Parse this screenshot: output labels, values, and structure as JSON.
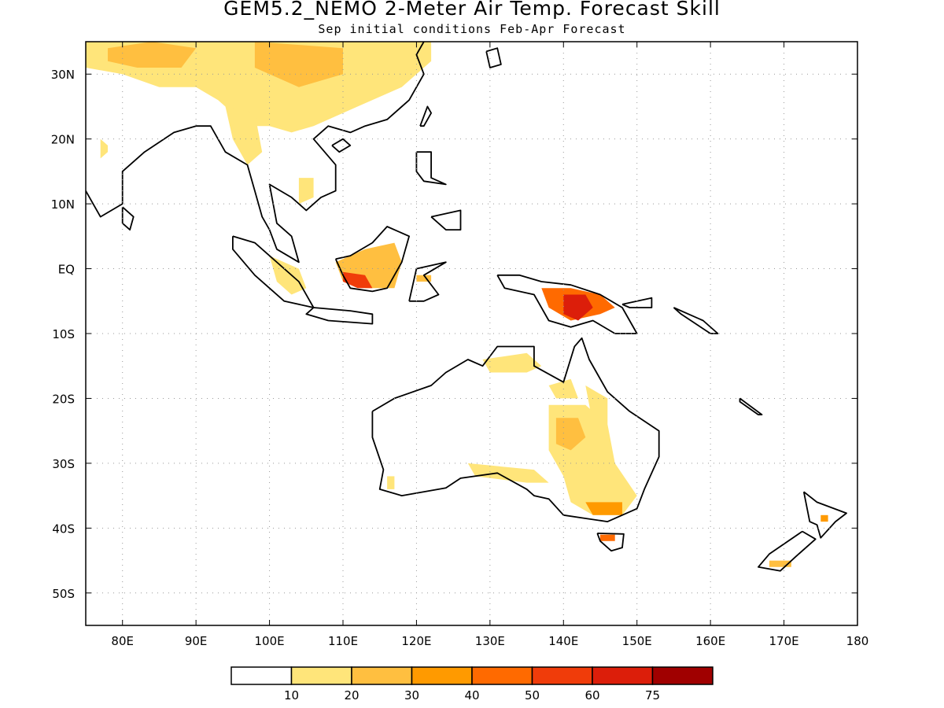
{
  "header": {
    "title": "GEM5.2_NEMO 2-Meter Air Temp. Forecast Skill",
    "subtitle": "Sep initial conditions  Feb-Apr Forecast"
  },
  "map": {
    "lon_range": [
      75,
      180
    ],
    "lat_range": [
      -55,
      35
    ],
    "lat_labels": [
      {
        "lat": 30,
        "text": "30N"
      },
      {
        "lat": 20,
        "text": "20N"
      },
      {
        "lat": 10,
        "text": "10N"
      },
      {
        "lat": 0,
        "text": "EQ"
      },
      {
        "lat": -10,
        "text": "10S"
      },
      {
        "lat": -20,
        "text": "20S"
      },
      {
        "lat": -30,
        "text": "30S"
      },
      {
        "lat": -40,
        "text": "40S"
      },
      {
        "lat": -50,
        "text": "50S"
      }
    ],
    "lon_labels": [
      {
        "lon": 80,
        "text": "80E"
      },
      {
        "lon": 90,
        "text": "90E"
      },
      {
        "lon": 100,
        "text": "100E"
      },
      {
        "lon": 110,
        "text": "110E"
      },
      {
        "lon": 120,
        "text": "120E"
      },
      {
        "lon": 130,
        "text": "130E"
      },
      {
        "lon": 140,
        "text": "140E"
      },
      {
        "lon": 150,
        "text": "150E"
      },
      {
        "lon": 160,
        "text": "160E"
      },
      {
        "lon": 170,
        "text": "170E"
      },
      {
        "lon": 180,
        "text": "180"
      }
    ],
    "gridlines": "dotted"
  },
  "colorbar": {
    "labels": [
      "10",
      "20",
      "30",
      "40",
      "50",
      "60",
      "75"
    ],
    "colors": [
      "#ffffff",
      "#ffe57a",
      "#ffbf40",
      "#ff9a00",
      "#ff6a00",
      "#f03c0a",
      "#dc1e0a",
      "#a00000"
    ]
  },
  "skill_regions": [
    {
      "name": "tibet-china",
      "level": 1,
      "pts": [
        [
          75,
          35
        ],
        [
          122,
          35
        ],
        [
          122,
          32
        ],
        [
          118,
          28
        ],
        [
          112,
          25
        ],
        [
          106,
          22
        ],
        [
          103,
          21
        ],
        [
          100,
          22
        ],
        [
          97,
          22
        ],
        [
          93,
          26
        ],
        [
          90,
          28
        ],
        [
          85,
          28
        ],
        [
          80,
          30
        ],
        [
          75,
          31
        ]
      ]
    },
    {
      "name": "tibet-core",
      "level": 2,
      "pts": [
        [
          78,
          34
        ],
        [
          84,
          35
        ],
        [
          90,
          34
        ],
        [
          88,
          31
        ],
        [
          82,
          31
        ],
        [
          78,
          32
        ]
      ]
    },
    {
      "name": "china-core",
      "level": 2,
      "pts": [
        [
          98,
          35
        ],
        [
          110,
          34
        ],
        [
          110,
          30
        ],
        [
          104,
          28
        ],
        [
          98,
          31
        ]
      ]
    },
    {
      "name": "myanmar",
      "level": 1,
      "pts": [
        [
          94,
          25
        ],
        [
          98,
          24
        ],
        [
          99,
          18
        ],
        [
          97,
          16
        ],
        [
          95,
          20
        ]
      ]
    },
    {
      "name": "india-nw",
      "level": 1,
      "pts": [
        [
          77,
          20
        ],
        [
          78,
          19
        ],
        [
          78,
          18
        ],
        [
          77,
          17
        ]
      ]
    },
    {
      "name": "vietnam",
      "level": 1,
      "pts": [
        [
          104,
          14
        ],
        [
          106,
          14
        ],
        [
          106,
          11
        ],
        [
          104,
          10
        ]
      ]
    },
    {
      "name": "sumatra",
      "level": 1,
      "pts": [
        [
          100,
          2
        ],
        [
          104,
          0
        ],
        [
          105,
          -3
        ],
        [
          103,
          -4
        ],
        [
          101,
          -2
        ]
      ]
    },
    {
      "name": "borneo",
      "level": 2,
      "pts": [
        [
          109,
          1
        ],
        [
          113,
          3
        ],
        [
          117,
          4
        ],
        [
          118,
          1
        ],
        [
          117,
          -3
        ],
        [
          113,
          -3
        ],
        [
          110,
          -2
        ]
      ]
    },
    {
      "name": "borneo-core",
      "level": 5,
      "pts": [
        [
          110,
          -0.5
        ],
        [
          113,
          -1
        ],
        [
          114,
          -3
        ],
        [
          112,
          -3
        ],
        [
          110,
          -2
        ]
      ]
    },
    {
      "name": "sulawesi",
      "level": 2,
      "pts": [
        [
          120,
          -1
        ],
        [
          122,
          -1
        ],
        [
          122,
          -2
        ],
        [
          120,
          -2
        ]
      ]
    },
    {
      "name": "new-guinea",
      "level": 4,
      "pts": [
        [
          137,
          -3
        ],
        [
          141,
          -3
        ],
        [
          145,
          -4
        ],
        [
          147,
          -6
        ],
        [
          145,
          -7
        ],
        [
          141,
          -8
        ],
        [
          138,
          -6
        ]
      ]
    },
    {
      "name": "new-guinea-core",
      "level": 6,
      "pts": [
        [
          140,
          -4
        ],
        [
          143,
          -4
        ],
        [
          144,
          -6
        ],
        [
          142,
          -8
        ],
        [
          140,
          -7
        ]
      ]
    },
    {
      "name": "aus-north",
      "level": 1,
      "pts": [
        [
          129,
          -14
        ],
        [
          135,
          -13
        ],
        [
          137,
          -15
        ],
        [
          135,
          -16
        ],
        [
          130,
          -16
        ]
      ]
    },
    {
      "name": "aus-cape",
      "level": 1,
      "pts": [
        [
          138,
          -18
        ],
        [
          141,
          -17
        ],
        [
          142,
          -20
        ],
        [
          139,
          -20
        ]
      ]
    },
    {
      "name": "aus-east-coast",
      "level": 1,
      "pts": [
        [
          143,
          -18
        ],
        [
          146,
          -20
        ],
        [
          146,
          -24
        ],
        [
          144,
          -24
        ]
      ]
    },
    {
      "name": "aus-interior",
      "level": 1,
      "pts": [
        [
          138,
          -21
        ],
        [
          143,
          -21
        ],
        [
          146,
          -24
        ],
        [
          147,
          -30
        ],
        [
          150,
          -35
        ],
        [
          148,
          -38
        ],
        [
          144,
          -38
        ],
        [
          141,
          -36
        ],
        [
          140,
          -32
        ],
        [
          138,
          -28
        ]
      ]
    },
    {
      "name": "aus-interior-2",
      "level": 2,
      "pts": [
        [
          139,
          -23
        ],
        [
          142,
          -23
        ],
        [
          143,
          -26
        ],
        [
          141,
          -28
        ],
        [
          139,
          -27
        ]
      ]
    },
    {
      "name": "aus-south",
      "level": 1,
      "pts": [
        [
          127,
          -30
        ],
        [
          136,
          -31
        ],
        [
          138,
          -33
        ],
        [
          135,
          -33
        ],
        [
          128,
          -32
        ]
      ]
    },
    {
      "name": "aus-se",
      "level": 3,
      "pts": [
        [
          143,
          -36
        ],
        [
          148,
          -36
        ],
        [
          148,
          -38
        ],
        [
          144,
          -38
        ]
      ]
    },
    {
      "name": "aus-sw",
      "level": 1,
      "pts": [
        [
          116,
          -32
        ],
        [
          117,
          -32
        ],
        [
          117,
          -34
        ],
        [
          116,
          -34
        ]
      ]
    },
    {
      "name": "tasmania",
      "level": 4,
      "pts": [
        [
          145,
          -41
        ],
        [
          147,
          -41
        ],
        [
          147,
          -42
        ],
        [
          145,
          -42
        ]
      ]
    },
    {
      "name": "nz-south",
      "level": 2,
      "pts": [
        [
          168,
          -45
        ],
        [
          171,
          -45
        ],
        [
          171,
          -46
        ],
        [
          168,
          -46
        ]
      ]
    },
    {
      "name": "nz-north",
      "level": 3,
      "pts": [
        [
          175,
          -38
        ],
        [
          176,
          -38
        ],
        [
          176,
          -39
        ],
        [
          175,
          -39
        ]
      ]
    }
  ],
  "coastlines": [
    {
      "name": "asia-mainland",
      "pts": [
        [
          75,
          12
        ],
        [
          77,
          8
        ],
        [
          80,
          10
        ],
        [
          80,
          15
        ],
        [
          83,
          18
        ],
        [
          87,
          21
        ],
        [
          90,
          22
        ],
        [
          92,
          22
        ],
        [
          94,
          18
        ],
        [
          97,
          16
        ],
        [
          98,
          12
        ],
        [
          99,
          8
        ],
        [
          100,
          6
        ],
        [
          101,
          3
        ],
        [
          104,
          1
        ],
        [
          103,
          5
        ],
        [
          101,
          7
        ],
        [
          100,
          13
        ],
        [
          103,
          11
        ],
        [
          105,
          9
        ],
        [
          107,
          11
        ],
        [
          109,
          12
        ],
        [
          109,
          16
        ],
        [
          106,
          20
        ],
        [
          108,
          22
        ],
        [
          111,
          21
        ],
        [
          113,
          22
        ],
        [
          116,
          23
        ],
        [
          119,
          26
        ],
        [
          121,
          30
        ],
        [
          120,
          33
        ],
        [
          121,
          35
        ]
      ]
    },
    {
      "name": "sri-lanka",
      "pts": [
        [
          80,
          9.5
        ],
        [
          81.5,
          8
        ],
        [
          81,
          6
        ],
        [
          80,
          7
        ],
        [
          80,
          9.5
        ]
      ]
    },
    {
      "name": "sumatra",
      "pts": [
        [
          95,
          5
        ],
        [
          98,
          4
        ],
        [
          104,
          -2
        ],
        [
          106,
          -6
        ],
        [
          102,
          -5
        ],
        [
          98,
          -1
        ],
        [
          95,
          3
        ],
        [
          95,
          5
        ]
      ]
    },
    {
      "name": "java",
      "pts": [
        [
          106,
          -6
        ],
        [
          111,
          -6.5
        ],
        [
          114,
          -7
        ],
        [
          114,
          -8.5
        ],
        [
          108,
          -8
        ],
        [
          105,
          -7
        ],
        [
          106,
          -6
        ]
      ]
    },
    {
      "name": "borneo",
      "pts": [
        [
          109,
          1.5
        ],
        [
          111,
          2
        ],
        [
          114,
          4
        ],
        [
          116,
          6.5
        ],
        [
          119,
          5
        ],
        [
          118,
          1
        ],
        [
          116,
          -3
        ],
        [
          114,
          -3.5
        ],
        [
          111,
          -3
        ],
        [
          110,
          -1
        ],
        [
          109,
          1.5
        ]
      ]
    },
    {
      "name": "sulawesi",
      "pts": [
        [
          119,
          -5
        ],
        [
          120,
          0
        ],
        [
          124,
          1
        ],
        [
          121,
          -1
        ],
        [
          123,
          -4
        ],
        [
          121,
          -5
        ],
        [
          119,
          -5
        ]
      ]
    },
    {
      "name": "philippines-luzon",
      "pts": [
        [
          120,
          18
        ],
        [
          122,
          18
        ],
        [
          122,
          14
        ],
        [
          124,
          13
        ],
        [
          121,
          13.5
        ],
        [
          120,
          15
        ],
        [
          120,
          18
        ]
      ]
    },
    {
      "name": "philippines-mindanao",
      "pts": [
        [
          122,
          8
        ],
        [
          126,
          9
        ],
        [
          126,
          6
        ],
        [
          124,
          6
        ],
        [
          122,
          8
        ]
      ]
    },
    {
      "name": "taiwan",
      "pts": [
        [
          120.5,
          22
        ],
        [
          121.5,
          25
        ],
        [
          122,
          24
        ],
        [
          121,
          22
        ],
        [
          120.5,
          22
        ]
      ]
    },
    {
      "name": "hainan",
      "pts": [
        [
          108.5,
          19
        ],
        [
          110,
          20
        ],
        [
          111,
          19
        ],
        [
          109.5,
          18
        ],
        [
          108.5,
          19
        ]
      ]
    },
    {
      "name": "new-guinea",
      "pts": [
        [
          131,
          -1
        ],
        [
          134,
          -1
        ],
        [
          137,
          -2
        ],
        [
          141,
          -2.5
        ],
        [
          145,
          -4
        ],
        [
          148,
          -6
        ],
        [
          150,
          -10
        ],
        [
          147,
          -10
        ],
        [
          144,
          -8
        ],
        [
          141,
          -9
        ],
        [
          138,
          -8
        ],
        [
          136,
          -4
        ],
        [
          132,
          -3
        ],
        [
          131,
          -1
        ]
      ]
    },
    {
      "name": "new-britain",
      "pts": [
        [
          148,
          -5.5
        ],
        [
          152,
          -4.5
        ],
        [
          152,
          -6
        ],
        [
          149,
          -6
        ],
        [
          148,
          -5.5
        ]
      ]
    },
    {
      "name": "australia",
      "pts": [
        [
          114,
          -22
        ],
        [
          117,
          -20
        ],
        [
          122,
          -18
        ],
        [
          124,
          -16
        ],
        [
          127,
          -14
        ],
        [
          129,
          -15
        ],
        [
          131,
          -12
        ],
        [
          136,
          -12
        ],
        [
          136,
          -15
        ],
        [
          140,
          -17.5
        ],
        [
          141.5,
          -12
        ],
        [
          142.5,
          -10.7
        ],
        [
          143.5,
          -14
        ],
        [
          146,
          -19
        ],
        [
          149,
          -22
        ],
        [
          153,
          -25
        ],
        [
          153,
          -29
        ],
        [
          151,
          -34
        ],
        [
          150,
          -37
        ],
        [
          146,
          -39
        ],
        [
          143,
          -38.5
        ],
        [
          140,
          -38
        ],
        [
          138,
          -35.5
        ],
        [
          136,
          -35
        ],
        [
          135,
          -34
        ],
        [
          131,
          -31.5
        ],
        [
          126,
          -32.3
        ],
        [
          124,
          -33.8
        ],
        [
          118,
          -35
        ],
        [
          115,
          -34
        ],
        [
          115.5,
          -31
        ],
        [
          114,
          -26
        ],
        [
          114,
          -22
        ]
      ]
    },
    {
      "name": "tasmania",
      "pts": [
        [
          144.6,
          -40.8
        ],
        [
          148.2,
          -40.9
        ],
        [
          148,
          -43
        ],
        [
          146.5,
          -43.5
        ],
        [
          145,
          -42
        ],
        [
          144.6,
          -40.8
        ]
      ]
    },
    {
      "name": "nz-north",
      "pts": [
        [
          172.7,
          -34.4
        ],
        [
          174.5,
          -36
        ],
        [
          178.5,
          -37.7
        ],
        [
          177,
          -39
        ],
        [
          175,
          -41.5
        ],
        [
          174.5,
          -39.5
        ],
        [
          173.5,
          -39
        ],
        [
          172.7,
          -34.4
        ]
      ]
    },
    {
      "name": "nz-south",
      "pts": [
        [
          172.5,
          -40.5
        ],
        [
          174.3,
          -41.7
        ],
        [
          171.5,
          -44.5
        ],
        [
          169.5,
          -46.6
        ],
        [
          166.5,
          -46
        ],
        [
          168,
          -44
        ],
        [
          172.5,
          -40.5
        ]
      ]
    },
    {
      "name": "new-caledonia",
      "pts": [
        [
          164,
          -20
        ],
        [
          167,
          -22.5
        ],
        [
          166.5,
          -22.5
        ],
        [
          164,
          -20.5
        ],
        [
          164,
          -20
        ]
      ]
    },
    {
      "name": "solomons",
      "pts": [
        [
          155,
          -6
        ],
        [
          159,
          -8
        ],
        [
          161,
          -10
        ],
        [
          160,
          -10
        ],
        [
          156,
          -7
        ],
        [
          155,
          -6
        ]
      ]
    },
    {
      "name": "japan-kyushu",
      "pts": [
        [
          129.5,
          33.5
        ],
        [
          131,
          34
        ],
        [
          131.5,
          31.5
        ],
        [
          130,
          31
        ],
        [
          129.5,
          33.5
        ]
      ]
    }
  ]
}
